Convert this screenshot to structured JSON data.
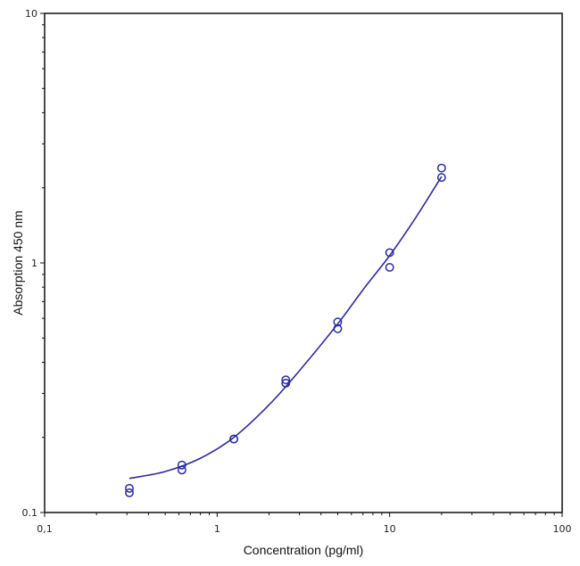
{
  "chart_data": {
    "type": "scatter",
    "title": "",
    "xlabel": "Concentration (pg/ml)",
    "ylabel": "Absorption 450 nm",
    "x_scale": "log",
    "y_scale": "log",
    "xlim": [
      0.1,
      100
    ],
    "ylim": [
      0.1,
      10
    ],
    "x_ticks": [
      {
        "value": 0.1,
        "label": "0,1"
      },
      {
        "value": 1,
        "label": "1"
      },
      {
        "value": 10,
        "label": "10"
      },
      {
        "value": 100,
        "label": "100"
      }
    ],
    "y_ticks": [
      {
        "value": 0.1,
        "label": "0.1"
      },
      {
        "value": 1,
        "label": "1"
      },
      {
        "value": 10,
        "label": "10"
      }
    ],
    "grid": false,
    "legend": "none",
    "color": "#2b2ba8",
    "points": [
      {
        "x": 0.31,
        "y": 0.125
      },
      {
        "x": 0.31,
        "y": 0.12
      },
      {
        "x": 0.625,
        "y": 0.155
      },
      {
        "x": 0.625,
        "y": 0.148
      },
      {
        "x": 1.25,
        "y": 0.197
      },
      {
        "x": 1.25,
        "y": 0.197
      },
      {
        "x": 2.5,
        "y": 0.34
      },
      {
        "x": 2.5,
        "y": 0.33
      },
      {
        "x": 5,
        "y": 0.58
      },
      {
        "x": 5,
        "y": 0.545
      },
      {
        "x": 10,
        "y": 1.1
      },
      {
        "x": 10,
        "y": 0.96
      },
      {
        "x": 20,
        "y": 2.4
      },
      {
        "x": 20,
        "y": 2.2
      }
    ],
    "fit_curve": {
      "x": [
        0.31,
        0.5,
        0.8,
        1.25,
        2,
        3,
        5,
        7,
        10,
        14,
        20
      ],
      "y": [
        0.137,
        0.146,
        0.165,
        0.2,
        0.27,
        0.37,
        0.57,
        0.78,
        1.07,
        1.5,
        2.22
      ]
    }
  }
}
